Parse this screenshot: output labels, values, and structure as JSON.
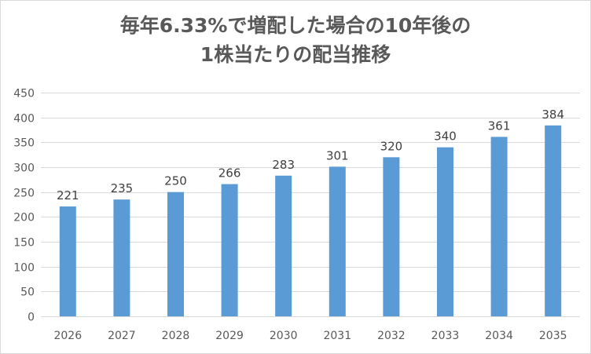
{
  "chart_data": {
    "type": "bar",
    "title_lines": [
      "毎年6.33%で増配した場合の10年後の",
      "1株当たりの配当推移"
    ],
    "categories": [
      "2026",
      "2027",
      "2028",
      "2029",
      "2030",
      "2031",
      "2032",
      "2033",
      "2034",
      "2035"
    ],
    "values": [
      221,
      235,
      250,
      266,
      283,
      301,
      320,
      340,
      361,
      384
    ],
    "data_labels": [
      "221",
      "235",
      "250",
      "266",
      "283",
      "301",
      "320",
      "340",
      "361",
      "384"
    ],
    "xlabel": "",
    "ylabel": "",
    "ylim": [
      0,
      450
    ],
    "y_ticks": [
      0,
      50,
      100,
      150,
      200,
      250,
      300,
      350,
      400,
      450
    ],
    "y_tick_labels": [
      "0",
      "50",
      "100",
      "150",
      "200",
      "250",
      "300",
      "350",
      "400",
      "450"
    ],
    "grid": true,
    "legend": "none",
    "colors": {
      "bar": "#5b9bd5",
      "grid": "#d9d9d9",
      "text": "#595959",
      "label": "#404040"
    }
  }
}
